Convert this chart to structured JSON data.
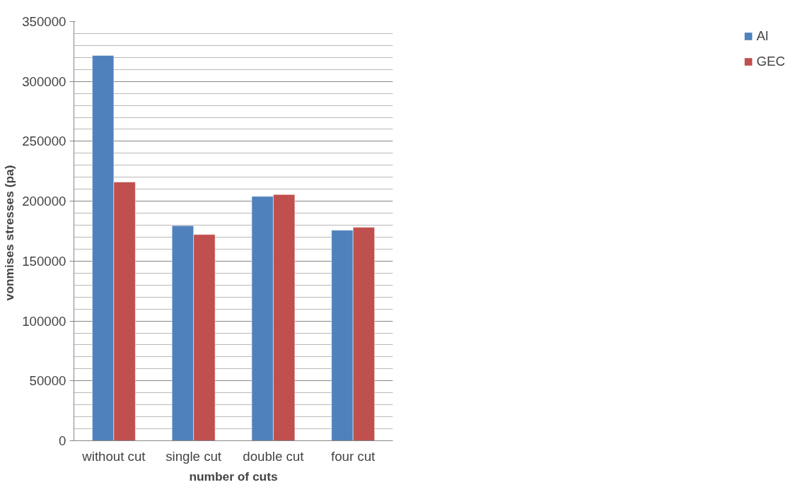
{
  "chart_data": {
    "type": "bar",
    "xlabel": "number of cuts",
    "ylabel": "vonmises  stresses (pa)",
    "categories": [
      "without cut",
      "single cut",
      "double cut",
      "four cut"
    ],
    "series": [
      {
        "name": "Al",
        "color": "#4f81bd",
        "values": [
          321700,
          179600,
          204000,
          175800
        ]
      },
      {
        "name": "GEC",
        "color": "#c0504d",
        "values": [
          216000,
          172200,
          205600,
          178200
        ]
      }
    ],
    "ylim": [
      0,
      350000
    ],
    "yticks": [
      0,
      50000,
      100000,
      150000,
      200000,
      250000,
      300000,
      350000
    ],
    "grid": "y",
    "legend": "right"
  }
}
